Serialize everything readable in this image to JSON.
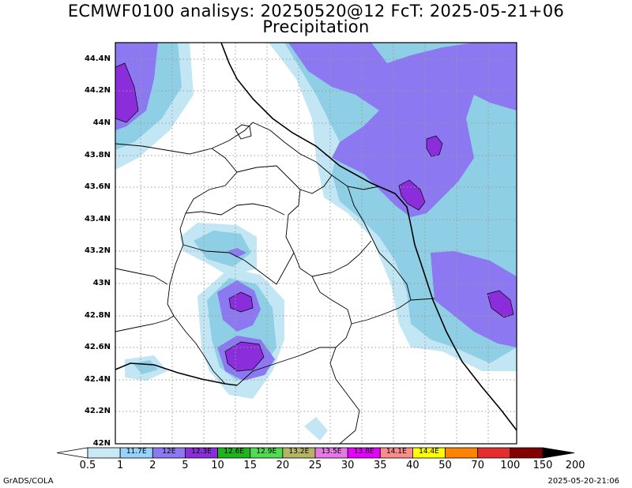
{
  "header": {
    "title_line1": "ECMWF0100 analisys: 20250520@12 FcT: 2025-05-21+06",
    "title_line2": "Precipitation"
  },
  "lat_labels": [
    "44.4N",
    "44.2N",
    "44N",
    "43.8N",
    "43.6N",
    "43.4N",
    "43.2N",
    "43N",
    "42.8N",
    "42.6N",
    "42.4N",
    "42.2N",
    "42N"
  ],
  "colorbar": {
    "levels": [
      "0.5",
      "1",
      "2",
      "5",
      "10",
      "15",
      "20",
      "25",
      "30",
      "35",
      "40",
      "50",
      "70",
      "100",
      "150",
      "200"
    ],
    "units": [
      "11.7E",
      "12E",
      "12.3E",
      "12.6E",
      "12.9E",
      "13.2E",
      "13.5E",
      "13.8E",
      "14.1E",
      "14.4E"
    ],
    "colors": [
      "#c8eaf4",
      "#96d2fa",
      "#8c78f0",
      "#8c2ddc",
      "#1eb41e",
      "#50dc50",
      "#b4b464",
      "#e678e6",
      "#e600ff",
      "#fa8c8c",
      "#ffff00",
      "#ff8200",
      "#e62d2d",
      "#820000"
    ]
  },
  "field_colors": {
    "light": "#c2e6f4",
    "mid": "#8fcfe6",
    "heavy": "#8c78f0",
    "peak": "#8c2ddc",
    "grid": "#9a9a9a"
  },
  "footer": {
    "left": "GrADS/COLA",
    "right": "2025-05-20-21:06"
  }
}
